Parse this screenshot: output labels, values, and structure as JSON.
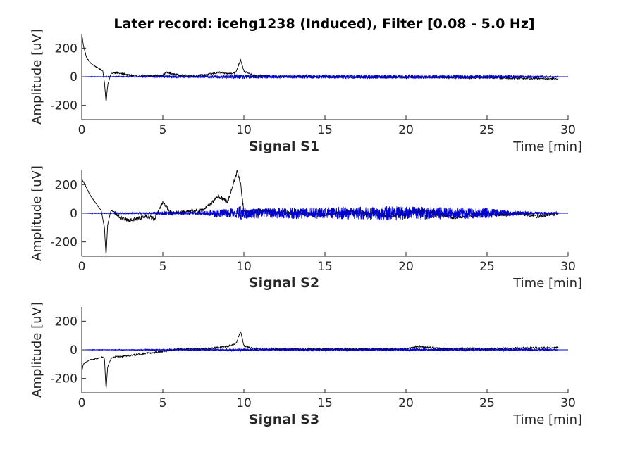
{
  "title": "Later record: icehg1238 (Induced), Filter [0.08 - 5.0 Hz]",
  "colors": {
    "raw": "#000000",
    "filtered": "#0000d0",
    "axis": "#262626"
  },
  "chart_data": [
    {
      "type": "line",
      "panel_label": "Signal S1",
      "ylabel": "Amplitude [uV]",
      "xlabel": "Time [min]",
      "xlim": [
        0,
        30
      ],
      "ylim": [
        -300,
        300
      ],
      "xticks": [
        "0",
        "5",
        "10",
        "15",
        "20",
        "25",
        "30"
      ],
      "yticks": [
        "200",
        "0",
        "-200"
      ],
      "x": [
        0,
        0.1,
        0.3,
        0.6,
        1.0,
        1.3,
        1.4,
        1.5,
        1.6,
        1.8,
        2.0,
        2.5,
        3.0,
        4.0,
        5.0,
        5.2,
        6.0,
        7.0,
        8.0,
        8.5,
        9.0,
        9.5,
        9.8,
        10.0,
        10.5,
        12.0,
        15.0,
        18.0,
        20.0,
        22.0,
        24.0,
        25.0,
        26.0,
        27.0,
        28.0,
        29.4
      ],
      "series": [
        {
          "role": "raw",
          "values": [
            300,
            220,
            130,
            90,
            60,
            40,
            -40,
            -180,
            -60,
            20,
            30,
            20,
            10,
            5,
            10,
            30,
            10,
            5,
            20,
            30,
            20,
            30,
            120,
            40,
            10,
            0,
            0,
            -5,
            -5,
            -5,
            -8,
            -5,
            -10,
            -10,
            -12,
            -15
          ]
        },
        {
          "role": "filtered",
          "amplitude": [
            0,
            0,
            2,
            2,
            2,
            2,
            3,
            3,
            3,
            3,
            3,
            4,
            4,
            5,
            8,
            10,
            8,
            8,
            10,
            12,
            12,
            15,
            18,
            15,
            12,
            12,
            14,
            14,
            14,
            12,
            12,
            14,
            12,
            10,
            8,
            6
          ]
        }
      ]
    },
    {
      "type": "line",
      "panel_label": "Signal S2",
      "ylabel": "Amplitude [uV]",
      "xlabel": "Time [min]",
      "xlim": [
        0,
        30
      ],
      "ylim": [
        -300,
        300
      ],
      "xticks": [
        "0",
        "5",
        "10",
        "15",
        "20",
        "25",
        "30"
      ],
      "yticks": [
        "200",
        "0",
        "-200"
      ],
      "x": [
        0,
        0.2,
        0.5,
        0.8,
        1.2,
        1.4,
        1.5,
        1.6,
        1.8,
        2.0,
        2.5,
        3.0,
        4.0,
        4.5,
        5.0,
        5.5,
        6.5,
        7.5,
        8.0,
        8.4,
        9.0,
        9.6,
        9.8,
        10.0,
        11.0,
        13.0,
        15.0,
        17.0,
        19.0,
        21.0,
        23.0,
        25.0,
        26.0,
        27.0,
        28.0,
        29.4
      ],
      "series": [
        {
          "role": "raw",
          "values": [
            240,
            200,
            130,
            80,
            20,
            -100,
            -300,
            -80,
            20,
            10,
            -40,
            -50,
            -20,
            -40,
            80,
            0,
            10,
            20,
            70,
            120,
            80,
            300,
            200,
            10,
            20,
            0,
            -10,
            10,
            -20,
            20,
            -30,
            0,
            -10,
            0,
            -20,
            0
          ]
        },
        {
          "role": "filtered",
          "amplitude": [
            0,
            0,
            2,
            3,
            3,
            3,
            3,
            3,
            3,
            4,
            5,
            6,
            8,
            10,
            14,
            12,
            12,
            14,
            22,
            30,
            30,
            40,
            55,
            40,
            35,
            40,
            40,
            45,
            50,
            45,
            40,
            35,
            25,
            15,
            10,
            8
          ]
        }
      ]
    },
    {
      "type": "line",
      "panel_label": "Signal S3",
      "ylabel": "Amplitude [uV]",
      "xlabel": "Time [min]",
      "xlim": [
        0,
        30
      ],
      "ylim": [
        -300,
        300
      ],
      "xticks": [
        "0",
        "5",
        "10",
        "15",
        "20",
        "25",
        "30"
      ],
      "yticks": [
        "200",
        "0",
        "-200"
      ],
      "x": [
        0,
        0.1,
        0.5,
        1.0,
        1.3,
        1.4,
        1.5,
        1.6,
        1.8,
        2.0,
        3.0,
        4.0,
        5.0,
        6.0,
        7.0,
        8.0,
        9.0,
        9.5,
        9.8,
        10.0,
        10.5,
        12.0,
        15.0,
        18.0,
        20.0,
        20.7,
        22.0,
        23.0,
        24.0,
        25.0,
        26.0,
        27.0,
        28.0,
        29.4
      ],
      "series": [
        {
          "role": "raw",
          "values": [
            -150,
            -100,
            -70,
            -60,
            -50,
            -60,
            -280,
            -120,
            -60,
            -50,
            -40,
            -25,
            -10,
            5,
            5,
            10,
            25,
            40,
            130,
            30,
            10,
            5,
            5,
            5,
            5,
            25,
            10,
            5,
            10,
            5,
            10,
            12,
            14,
            15
          ]
        },
        {
          "role": "filtered",
          "amplitude": [
            0,
            0,
            2,
            2,
            2,
            2,
            2,
            2,
            2,
            3,
            3,
            4,
            5,
            6,
            6,
            7,
            8,
            10,
            12,
            10,
            8,
            8,
            8,
            9,
            9,
            10,
            9,
            9,
            9,
            9,
            9,
            8,
            8,
            6
          ]
        }
      ]
    }
  ]
}
